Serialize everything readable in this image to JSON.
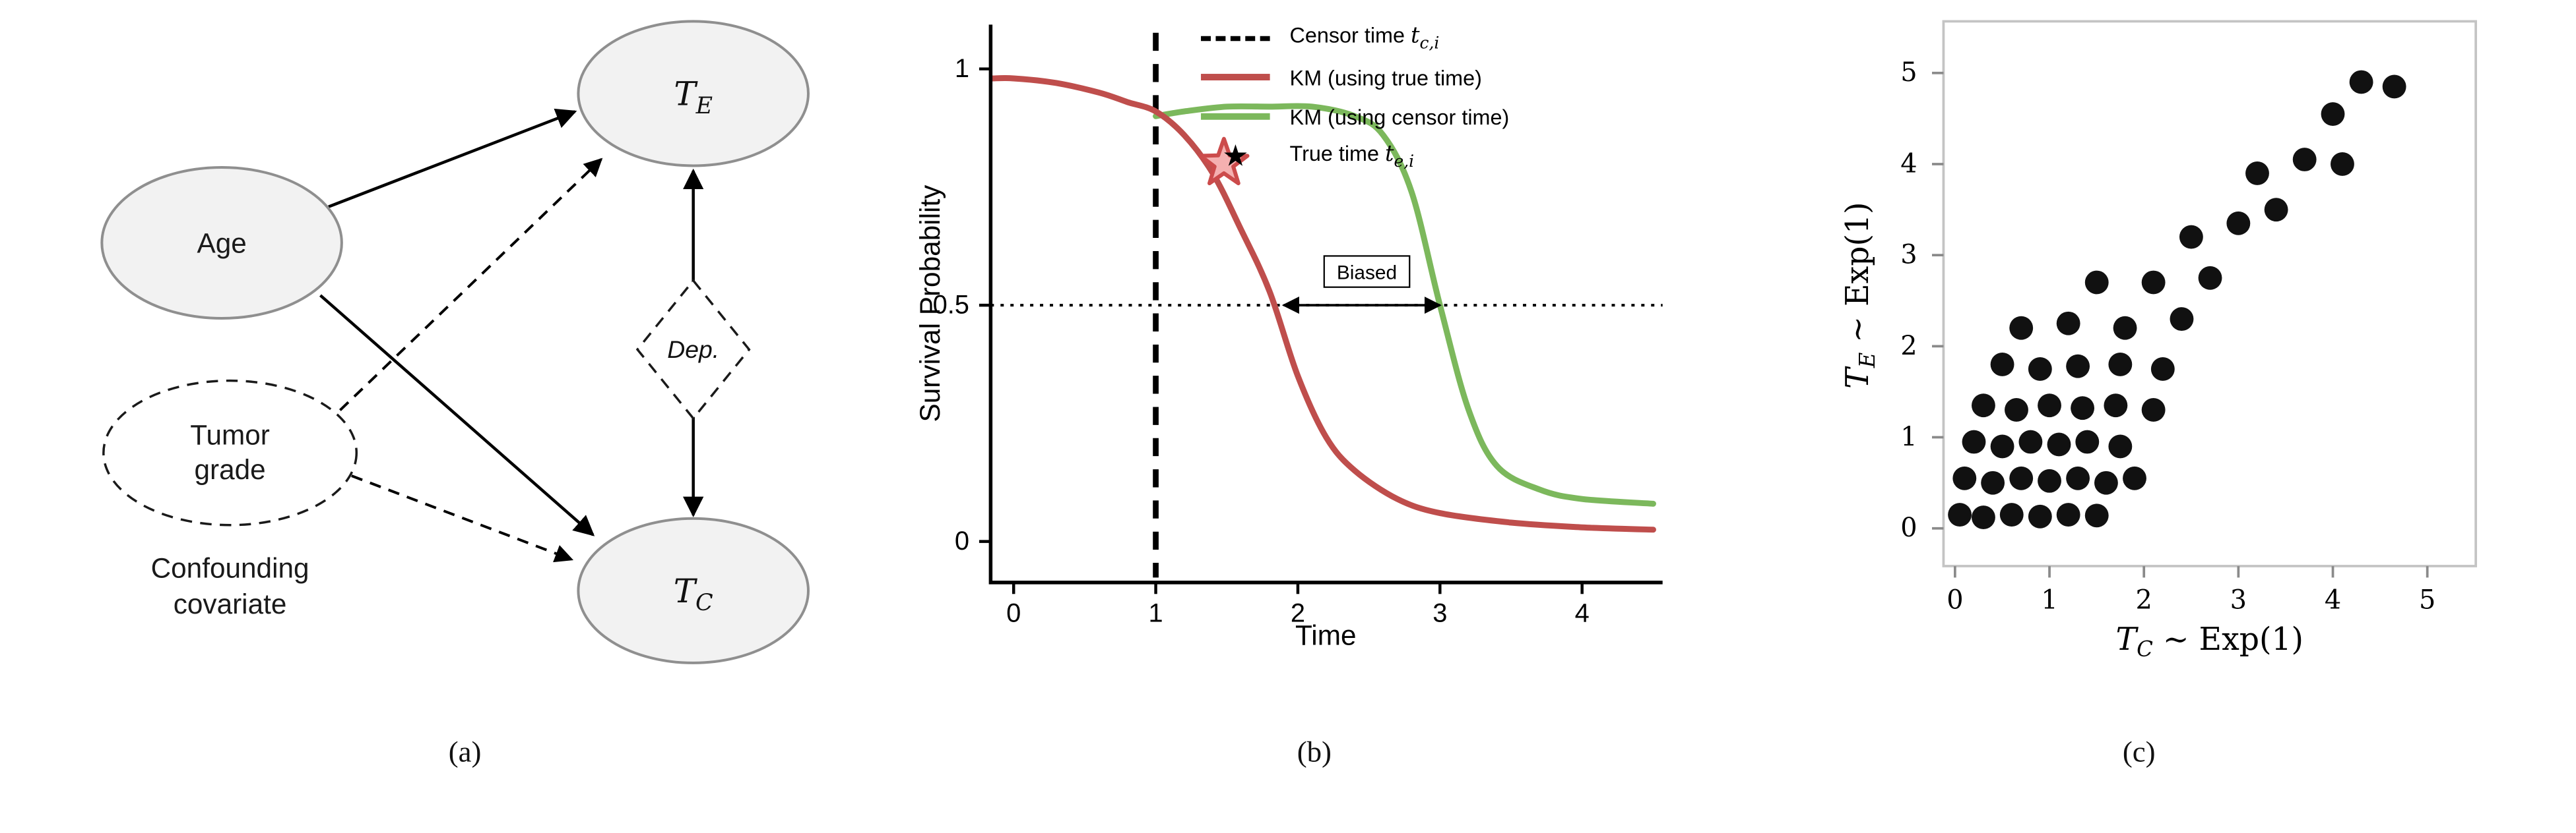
{
  "figure": {
    "captions": {
      "a": "(a)",
      "b": "(b)",
      "c": "(c)"
    }
  },
  "panel_a": {
    "nodes": {
      "age": "Age",
      "tumor_grade_line1": "Tumor",
      "tumor_grade_line2": "grade",
      "t_e": {
        "main": "T",
        "sub": "E"
      },
      "t_c": {
        "main": "T",
        "sub": "C"
      },
      "dep": "Dep."
    },
    "note_line1": "Confounding",
    "note_line2": "covariate"
  },
  "panel_b": {
    "legend": {
      "censor_prefix": "Censor time ",
      "censor_math": "t",
      "censor_sub": "c,i",
      "km_true": "KM (using true time)",
      "km_censor": "KM (using censor time)",
      "true_prefix": "True time ",
      "true_math": "t",
      "true_sub": "e,i",
      "star_char": "★"
    }
  },
  "panel_c": {
    "xlabel": {
      "main": "T",
      "sub": "C",
      "rest": " ∼ Exp(1)"
    },
    "ylabel": {
      "main": "T",
      "sub": "E",
      "rest": " ∼ Exp(1)"
    }
  },
  "chart_data": [
    {
      "panel": "b",
      "type": "line",
      "title": "",
      "xlabel": "Time",
      "ylabel": "Survival Probability",
      "xlim": [
        -0.2,
        4.6
      ],
      "ylim": [
        0,
        1.05
      ],
      "xticks": [
        0,
        1,
        2,
        3,
        4
      ],
      "xtick_labels": [
        "0",
        "1",
        "2",
        "3",
        "4"
      ],
      "yticks": [
        0,
        0.5,
        1
      ],
      "ytick_labels": [
        "0",
        "0.5",
        "1"
      ],
      "grid": false,
      "legend_position": "upper right",
      "series": [
        {
          "name": "KM (using true time)",
          "color": "#bf4e4c",
          "x": [
            -0.15,
            0,
            0.3,
            0.6,
            0.8,
            1,
            1.2,
            1.4,
            1.6,
            1.8,
            2,
            2.2,
            2.4,
            2.7,
            3,
            3.5,
            4,
            4.5
          ],
          "y": [
            0.98,
            0.98,
            0.97,
            0.95,
            0.93,
            0.91,
            0.86,
            0.78,
            0.66,
            0.53,
            0.35,
            0.22,
            0.15,
            0.09,
            0.06,
            0.04,
            0.03,
            0.025
          ]
        },
        {
          "name": "KM (using censor time)",
          "color": "#7cb85c",
          "x": [
            1,
            1.2,
            1.5,
            1.8,
            2.1,
            2.4,
            2.6,
            2.8,
            3,
            3.2,
            3.4,
            3.7,
            4,
            4.5
          ],
          "y": [
            0.9,
            0.91,
            0.92,
            0.92,
            0.92,
            0.9,
            0.86,
            0.74,
            0.5,
            0.28,
            0.16,
            0.11,
            0.09,
            0.08
          ]
        }
      ],
      "annotations": {
        "censor_time_vline_x": 1,
        "median_hline_y": 0.5,
        "biased_arrow": {
          "y": 0.5,
          "x_from": 1.9,
          "x_to": 3.0,
          "label": "Biased"
        },
        "true_time_star": {
          "x": 1.48,
          "y": 0.8,
          "fill": "#f5b0b0",
          "stroke": "#cc4b4b"
        }
      }
    },
    {
      "panel": "c",
      "type": "scatter",
      "title": "",
      "xlabel": "T_C ~ Exp(1)",
      "ylabel": "T_E ~ Exp(1)",
      "xlim": [
        -0.2,
        5.5
      ],
      "ylim": [
        -0.4,
        5.6
      ],
      "xticks": [
        0,
        1,
        2,
        3,
        4,
        5
      ],
      "xtick_labels": [
        "0",
        "1",
        "2",
        "3",
        "4",
        "5"
      ],
      "yticks": [
        0,
        1,
        2,
        3,
        4,
        5
      ],
      "ytick_labels": [
        "0",
        "1",
        "2",
        "3",
        "4",
        "5"
      ],
      "grid": false,
      "point_color": "#111111",
      "points": [
        [
          0.05,
          0.15
        ],
        [
          0.3,
          0.12
        ],
        [
          0.6,
          0.15
        ],
        [
          0.9,
          0.13
        ],
        [
          1.2,
          0.15
        ],
        [
          1.5,
          0.14
        ],
        [
          0.1,
          0.55
        ],
        [
          0.4,
          0.5
        ],
        [
          0.7,
          0.55
        ],
        [
          1.0,
          0.52
        ],
        [
          1.3,
          0.55
        ],
        [
          1.6,
          0.5
        ],
        [
          1.9,
          0.55
        ],
        [
          0.2,
          0.95
        ],
        [
          0.5,
          0.9
        ],
        [
          0.8,
          0.95
        ],
        [
          1.1,
          0.92
        ],
        [
          1.4,
          0.95
        ],
        [
          1.75,
          0.9
        ],
        [
          0.3,
          1.35
        ],
        [
          0.65,
          1.3
        ],
        [
          1.0,
          1.35
        ],
        [
          1.35,
          1.32
        ],
        [
          1.7,
          1.35
        ],
        [
          2.1,
          1.3
        ],
        [
          0.5,
          1.8
        ],
        [
          0.9,
          1.75
        ],
        [
          1.3,
          1.78
        ],
        [
          1.75,
          1.8
        ],
        [
          2.2,
          1.75
        ],
        [
          0.7,
          2.2
        ],
        [
          1.2,
          2.25
        ],
        [
          1.8,
          2.2
        ],
        [
          2.4,
          2.3
        ],
        [
          1.5,
          2.7
        ],
        [
          2.1,
          2.7
        ],
        [
          2.7,
          2.75
        ],
        [
          2.5,
          3.2
        ],
        [
          3.0,
          3.35
        ],
        [
          3.4,
          3.5
        ],
        [
          3.2,
          3.9
        ],
        [
          3.7,
          4.05
        ],
        [
          4.1,
          4.0
        ],
        [
          4.0,
          4.55
        ],
        [
          4.3,
          4.9
        ],
        [
          4.65,
          4.85
        ]
      ]
    }
  ]
}
